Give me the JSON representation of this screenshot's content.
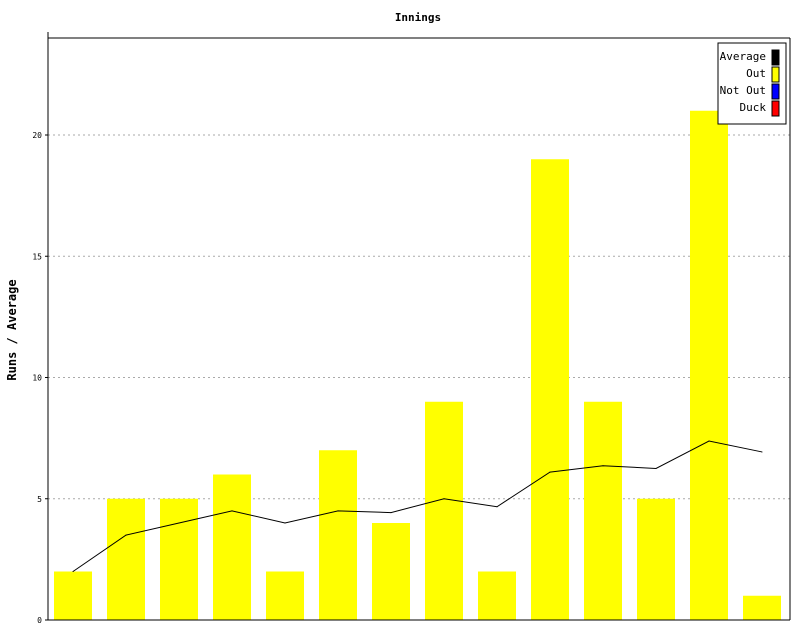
{
  "chart_data": {
    "type": "bar",
    "title": "Innings",
    "ylabel": "Runs / Average",
    "xlabel": "",
    "ylim": [
      0,
      24
    ],
    "yticks": [
      0,
      5,
      10,
      15,
      20
    ],
    "ytick_labels": [
      "0",
      "5",
      "10",
      "15",
      "20"
    ],
    "grid": "horizontal dotted",
    "legend_position": "top-right",
    "legend": [
      {
        "label": "Average",
        "color": "#000000"
      },
      {
        "label": "Out",
        "color": "#ffff00"
      },
      {
        "label": "Not Out",
        "color": "#0000ff"
      },
      {
        "label": "Duck",
        "color": "#ff0000"
      }
    ],
    "bars": {
      "name": "Out",
      "color": "#ffff00",
      "values": [
        2,
        5,
        5,
        6,
        2,
        7,
        4,
        9,
        2,
        19,
        9,
        5,
        21,
        1
      ]
    },
    "line": {
      "name": "Average",
      "color": "#000000",
      "values": [
        2,
        3.5,
        4,
        4.5,
        4,
        4.5,
        4.43,
        5,
        4.67,
        6.1,
        6.36,
        6.25,
        7.38,
        6.93
      ]
    }
  }
}
